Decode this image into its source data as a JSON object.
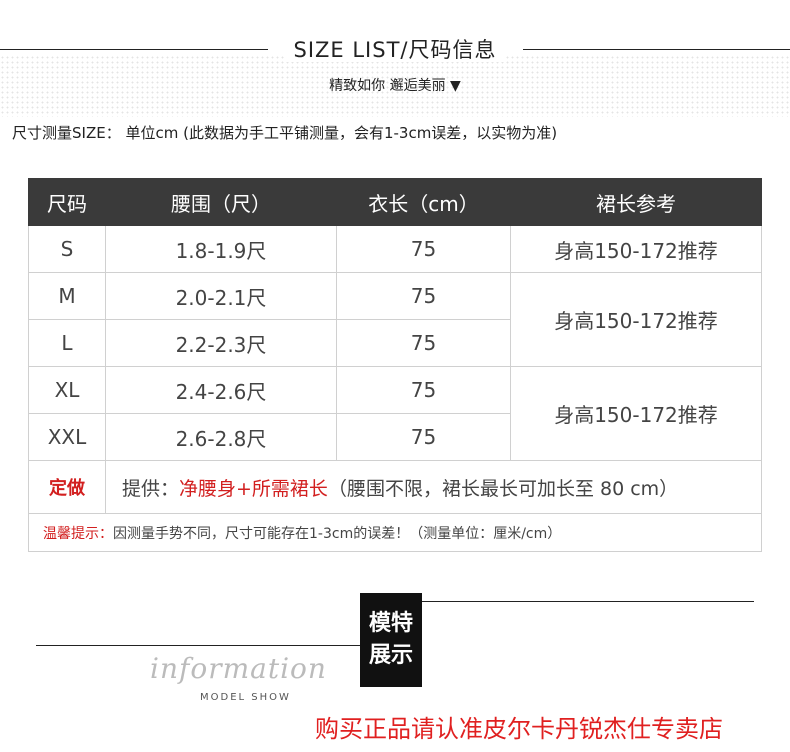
{
  "header": {
    "title": "SIZE LIST/尺码信息",
    "subtitle": "精致如你 邂逅美丽 ▼",
    "unit_note": "尺寸测量SIZE：  单位cm   (此数据为手工平铺测量，会有1-3cm误差，以实物为准)"
  },
  "table": {
    "headers": [
      "尺码",
      "腰围（尺）",
      "衣长（cm）",
      "裙长参考"
    ],
    "rows": [
      [
        "S",
        "1.8-1.9尺",
        "75"
      ],
      [
        "M",
        "2.0-2.1尺",
        "75"
      ],
      [
        "L",
        "2.2-2.3尺",
        "75"
      ],
      [
        "XL",
        "2.4-2.6尺",
        "75"
      ],
      [
        "XXL",
        "2.6-2.8尺",
        "75"
      ]
    ],
    "skirt_ref": [
      "身高150-172推荐",
      "身高150-172推荐",
      "身高150-172推荐"
    ],
    "custom_label": "定做",
    "custom_prefix": "提供：",
    "custom_red": "净腰身+所需裙长",
    "custom_rest": "（腰围不限，裙长最长可加长至 80 cm）",
    "tip_label": "温馨提示：",
    "tip_text": "因测量手势不同，尺寸可能存在1-3cm的误差！（测量单位：厘米/cm）"
  },
  "model": {
    "line1": "模特",
    "line2": "展示",
    "info": "information",
    "model_show": "MODEL SHOW"
  },
  "store_notice": "购买正品请认准皮尔卡丹锐杰仕专卖店",
  "colors": {
    "accent_red": "#d21f1f",
    "header_bg": "#3a3a3a"
  }
}
